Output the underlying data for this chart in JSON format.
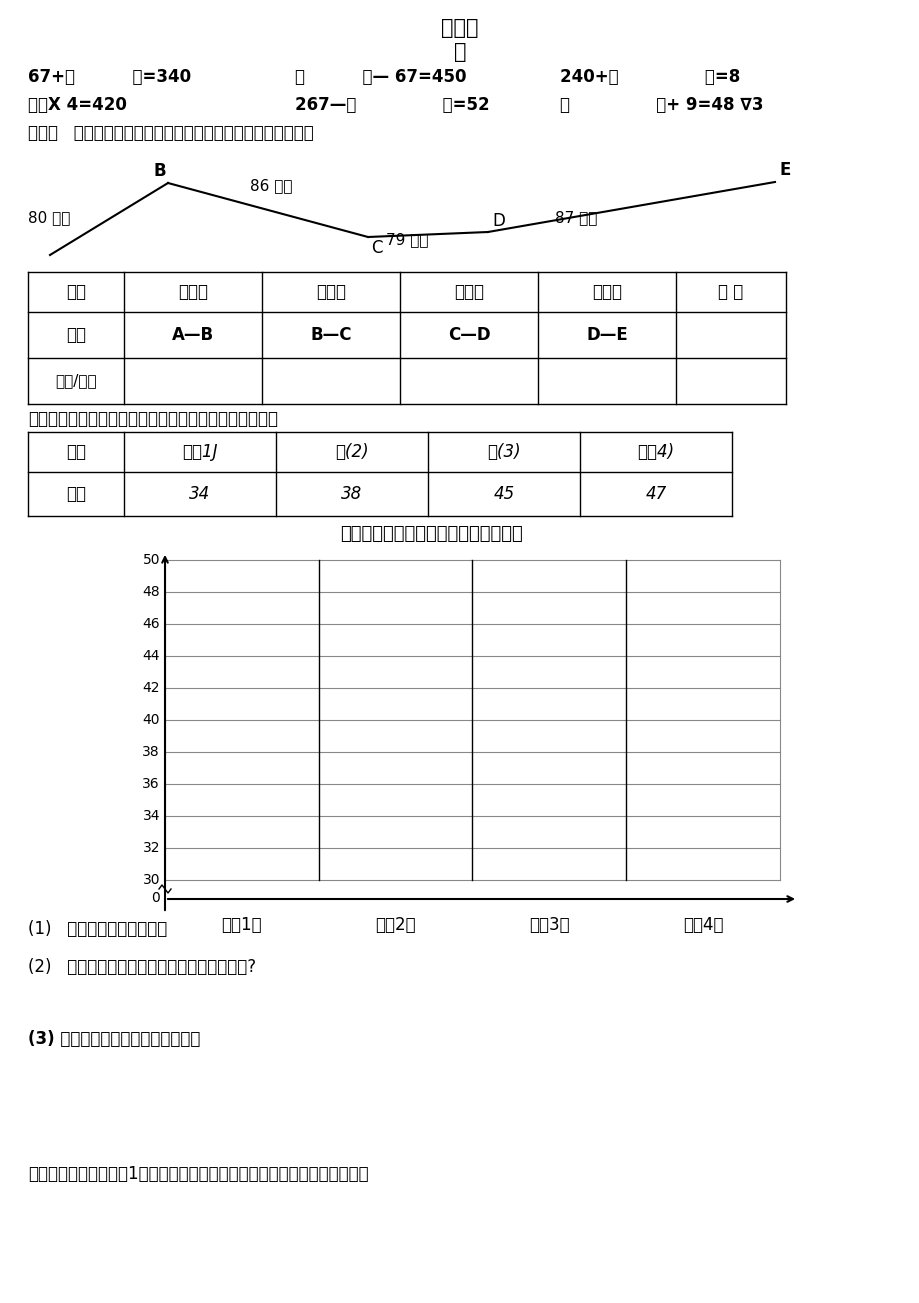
{
  "title_line1": "新集家",
  "title_line2": "教",
  "eq_row1_a": "67+（          ）=340",
  "eq_row1_b": "（          ）— 67=450",
  "eq_row1_c": "240+（               ）=8",
  "eq_row2_a": "（）X 4=420",
  "eq_row2_b": "267—（               ）=52",
  "eq_row2_c": "（               ）+ 9=48 ∇3",
  "san_text": "（三）   李叔叔骑自行车去旅行，下面是他前四天的行走路线。",
  "table1_headers": [
    "时间",
    "第一天",
    "第二天",
    "第三天",
    "第四天",
    "平 均"
  ],
  "table1_row1": [
    "路线",
    "A—B",
    "B—C",
    "C—D",
    "D—E",
    ""
  ],
  "table1_row2": [
    "路程/千米",
    "",
    "",
    "",
    "",
    ""
  ],
  "si_text": "（四）下面是三年级同学在一个周末上网的人数统计表。",
  "table2_h0": "班级",
  "table2_h1": "三（1J",
  "table2_h2": "三(2)",
  "table2_h3": "三(3)",
  "table2_h4": "三（4)",
  "table2_r0": "人数",
  "table2_r1": "34",
  "table2_r2": "38",
  "table2_r3": "45",
  "table2_r4": "47",
  "chart_title": "三年级同学在一个周末上网人数统计图",
  "chart_xlabel": [
    "三（1）",
    "三（2）",
    "三（3）",
    "三（4）"
  ],
  "q1": "(1)   涂一涂，完成统计图。",
  "q2": "(2)   这个周末平均每个班级上网的人数是多少?",
  "q3": "(3) 请你也提一个数学问题并解答。",
  "wu_text": "（五）下面有一张三（1）班环保小分队收集废旧电池数量统计图，请回答：",
  "road_b_label": "B",
  "road_86": "86 千米",
  "road_e_label": "E",
  "road_80": "80 千米",
  "road_c_label": "C",
  "road_79": "79 千米",
  "road_d_label": "D",
  "road_87": "87 千米"
}
